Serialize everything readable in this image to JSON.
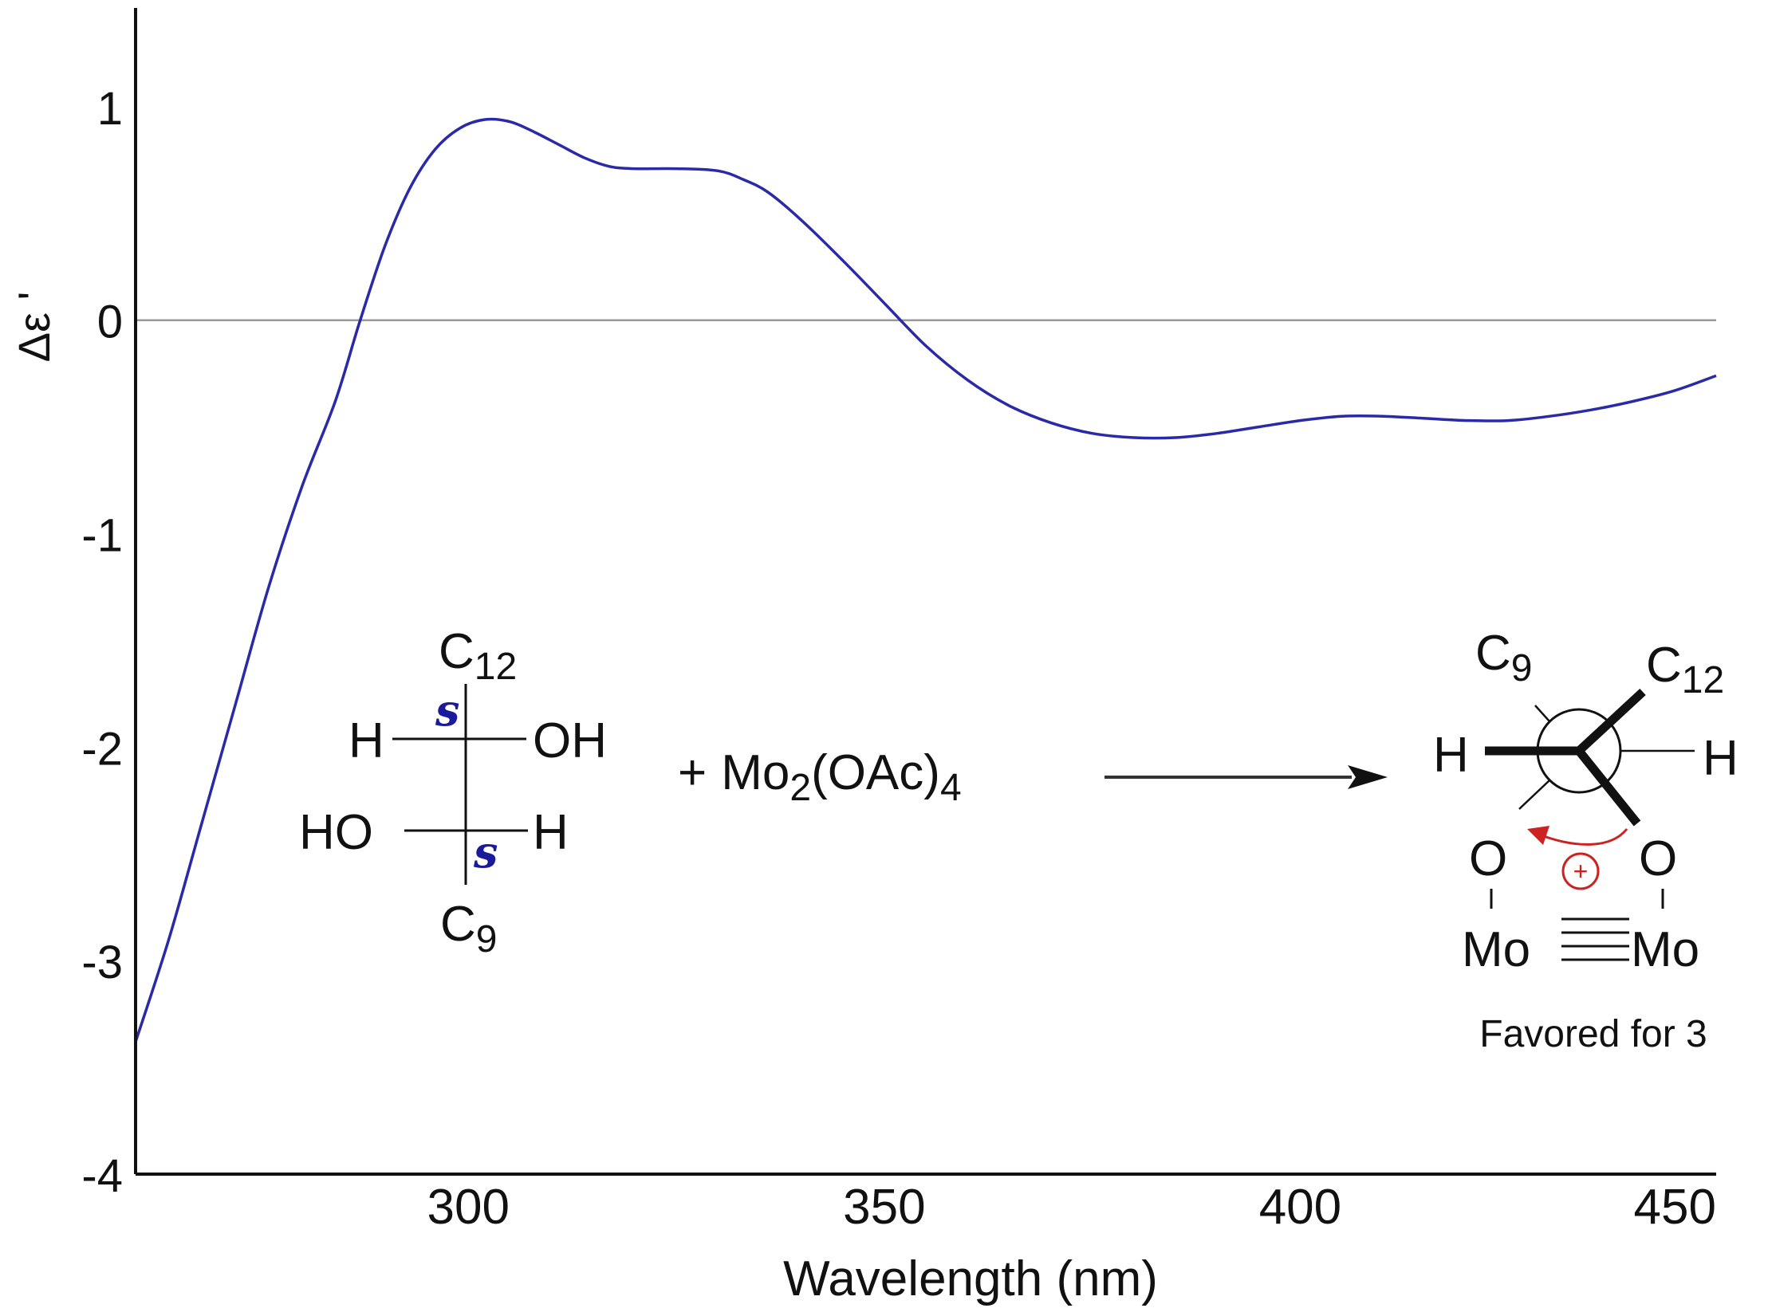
{
  "chart_data": {
    "type": "line",
    "xlabel": "Wavelength (nm)",
    "ylabel": "Δε '",
    "xlim": [
      260,
      450
    ],
    "ylim": [
      -4,
      1.5
    ],
    "xticks": [
      300,
      350,
      400,
      450
    ],
    "yticks": [
      1,
      0,
      -1,
      -2,
      -3,
      -4
    ],
    "zero_line": true,
    "grid": false,
    "series": [
      {
        "color": "#2a2aa8",
        "x": [
          260,
          264,
          268,
          272,
          276,
          280,
          284,
          287,
          290,
          293,
          296,
          299,
          302,
          305,
          308,
          311,
          314,
          317,
          320,
          325,
          330,
          333,
          336,
          340,
          345,
          350,
          355,
          360,
          365,
          370,
          375,
          380,
          385,
          390,
          395,
          400,
          405,
          410,
          415,
          420,
          425,
          430,
          435,
          440,
          445,
          450
        ],
        "y": [
          -3.38,
          -2.9,
          -2.35,
          -1.8,
          -1.25,
          -0.78,
          -0.38,
          0.0,
          0.35,
          0.62,
          0.8,
          0.9,
          0.94,
          0.93,
          0.88,
          0.82,
          0.76,
          0.72,
          0.71,
          0.71,
          0.7,
          0.66,
          0.6,
          0.47,
          0.28,
          0.08,
          -0.12,
          -0.28,
          -0.4,
          -0.48,
          -0.53,
          -0.55,
          -0.55,
          -0.53,
          -0.5,
          -0.47,
          -0.45,
          -0.45,
          -0.46,
          -0.47,
          -0.47,
          -0.45,
          -0.42,
          -0.38,
          -0.33,
          -0.26
        ]
      }
    ]
  },
  "scheme": {
    "fischer": {
      "top": "C",
      "top_sub": "12",
      "bottom": "C",
      "bottom_sub": "9",
      "row1_left": "H",
      "row1_right": "OH",
      "row2_left": "HO",
      "row2_right": "H",
      "stereo1": "s",
      "stereo2": "s"
    },
    "reagent": {
      "plus": "+",
      "mo": "Mo",
      "sub2": "2",
      "oac": "(OAc)",
      "sub4": "4"
    },
    "newman": {
      "c9": "C",
      "c9_sub": "9",
      "c12": "C",
      "c12_sub": "12",
      "h_left": "H",
      "h_right": "H",
      "o_left": "O",
      "o_right": "O",
      "mo_left": "Mo",
      "mo_right": "Mo",
      "plus_symbol": "+",
      "caption": "Favored for 3"
    },
    "colors": {
      "curve": "#2a2aa8",
      "stereo": "#1a1a9a",
      "arrow": "#cc2222",
      "axis": "#111111",
      "zero": "#9a9a9a"
    }
  }
}
